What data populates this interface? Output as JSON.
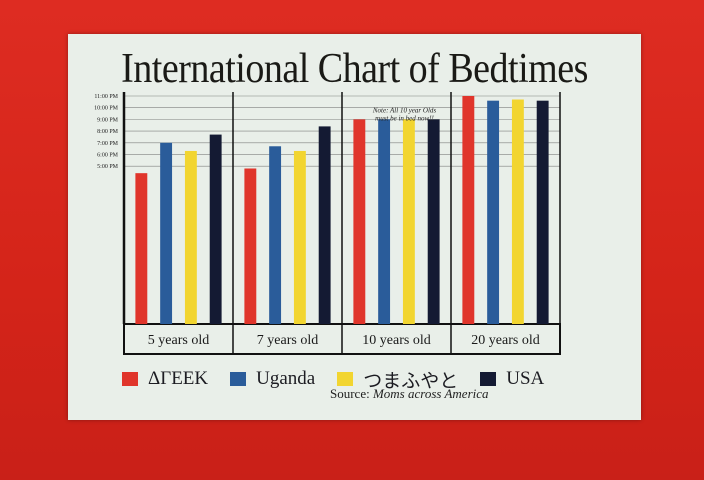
{
  "chart_data": {
    "type": "bar",
    "title": "International Chart of Bedtimes",
    "categories": [
      "5 years old",
      "7 years old",
      "10 years old",
      "20 years old"
    ],
    "y_ticks": [
      "11:00 PM",
      "10:00 PM",
      "9:00 PM",
      "8:00 PM",
      "7:00 PM",
      "6:00 PM",
      "5:00 PM"
    ],
    "y_unit": "hour (24h clock)",
    "ylim": [
      3.5,
      23.0
    ],
    "series": [
      {
        "name": "ΔΓΕΕΚ",
        "color": "#e0352b",
        "values": [
          16.4,
          16.8,
          21.0,
          23.0
        ]
      },
      {
        "name": "Uganda",
        "color": "#2a5c9a",
        "values": [
          19.0,
          18.7,
          21.0,
          22.6
        ]
      },
      {
        "name": "つまふやと",
        "color": "#f2d530",
        "values": [
          18.3,
          18.3,
          21.0,
          22.7
        ]
      },
      {
        "name": "USA",
        "color": "#141a33",
        "values": [
          19.7,
          20.4,
          21.0,
          22.6
        ]
      }
    ],
    "annotation": "Note: All 10 year Olds must be in bed now!!",
    "grid": true
  },
  "legend": {
    "items": [
      {
        "label": "ΔΓΕΕΚ",
        "color": "#e0352b"
      },
      {
        "label": "Uganda",
        "color": "#2a5c9a"
      },
      {
        "label": "つまふやと",
        "color": "#f2d530"
      },
      {
        "label": "USA",
        "color": "#141a33"
      }
    ]
  },
  "source": {
    "prefix": "Source:",
    "text": "Moms across America"
  }
}
